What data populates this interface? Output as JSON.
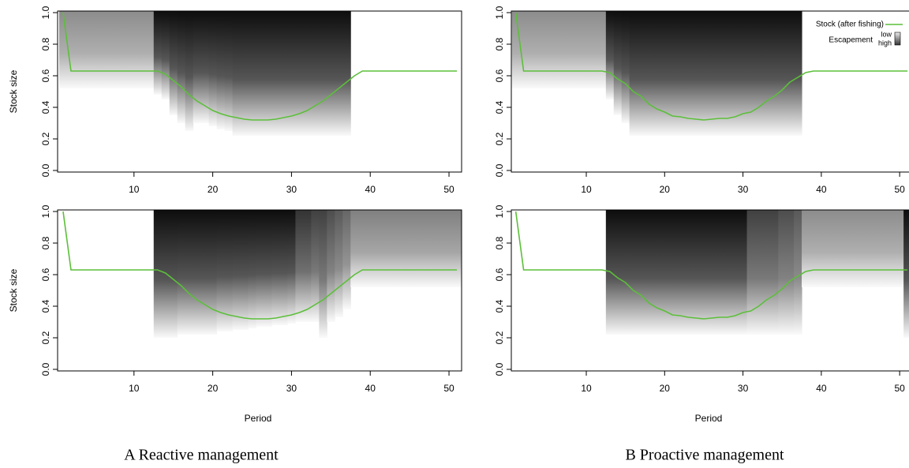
{
  "captions": [
    "A Reactive management",
    "B Proactive management"
  ],
  "chart_data": [
    {
      "type": "line",
      "ylabel": "Stock size",
      "x": [
        1,
        2,
        3,
        4,
        5,
        6,
        7,
        8,
        9,
        10,
        11,
        12,
        13,
        14,
        15,
        16,
        17,
        18,
        19,
        20,
        21,
        22,
        23,
        24,
        25,
        26,
        27,
        28,
        29,
        30,
        31,
        32,
        33,
        34,
        35,
        36,
        37,
        38,
        39,
        40,
        41,
        42,
        43,
        44,
        45,
        46,
        47,
        48,
        49,
        50,
        51
      ],
      "series": [
        {
          "color": "#5cbf3a",
          "values": [
            1.0,
            0.63,
            0.63,
            0.63,
            0.63,
            0.63,
            0.63,
            0.63,
            0.63,
            0.63,
            0.63,
            0.63,
            0.63,
            0.61,
            0.57,
            0.53,
            0.48,
            0.44,
            0.41,
            0.38,
            0.36,
            0.345,
            0.335,
            0.325,
            0.32,
            0.32,
            0.32,
            0.325,
            0.335,
            0.345,
            0.36,
            0.38,
            0.41,
            0.44,
            0.48,
            0.52,
            0.56,
            0.6,
            0.63,
            0.63,
            0.63,
            0.63,
            0.63,
            0.63,
            0.63,
            0.63,
            0.63,
            0.63,
            0.63,
            0.63,
            0.63
          ]
        }
      ],
      "shade_low": [
        0.52,
        0.52,
        0.52,
        0.52,
        0.52,
        0.52,
        0.52,
        0.52,
        0.52,
        0.52,
        0.52,
        0.52,
        0.48,
        0.45,
        0.35,
        0.3,
        0.25,
        0.3,
        0.3,
        0.28,
        0.26,
        0.25,
        0.22,
        0.22,
        0.22,
        0.22,
        0.22,
        0.22,
        0.22,
        0.22,
        0.22,
        0.22,
        0.22,
        0.22,
        0.22,
        0.22,
        0.22,
        null,
        null,
        null,
        null,
        null,
        null,
        null,
        null,
        null,
        null,
        null,
        null,
        null,
        null
      ],
      "shade_dark": [
        0.45,
        0.45,
        0.45,
        0.45,
        0.45,
        0.45,
        0.45,
        0.45,
        0.45,
        0.45,
        0.45,
        0.45,
        0.95,
        0.95,
        0.95,
        0.95,
        0.95,
        0.95,
        0.95,
        0.95,
        0.95,
        0.95,
        0.95,
        0.95,
        0.95,
        0.95,
        0.95,
        0.95,
        0.95,
        0.95,
        0.95,
        0.95,
        0.95,
        0.95,
        0.95,
        0.95,
        0.95,
        null,
        null,
        null,
        null,
        null,
        null,
        null,
        null,
        null,
        null,
        null,
        null,
        null,
        null
      ],
      "xlim": [
        0.3,
        51.6
      ],
      "ylim": [
        -0.01,
        1.01
      ],
      "xticks": [
        10,
        20,
        30,
        40,
        50
      ],
      "yticks": [
        {
          "value": 0,
          "label": "0.0"
        },
        {
          "value": 0.2,
          "label": "0.2"
        },
        {
          "value": 0.4,
          "label": "0.4"
        },
        {
          "value": 0.6,
          "label": "0.6"
        },
        {
          "value": 0.8,
          "label": "0.8"
        },
        {
          "value": 1,
          "label": "1.0"
        }
      ]
    },
    {
      "type": "line",
      "x": [
        1,
        2,
        3,
        4,
        5,
        6,
        7,
        8,
        9,
        10,
        11,
        12,
        13,
        14,
        15,
        16,
        17,
        18,
        19,
        20,
        21,
        22,
        23,
        24,
        25,
        26,
        27,
        28,
        29,
        30,
        31,
        32,
        33,
        34,
        35,
        36,
        37,
        38,
        39,
        40,
        41,
        42,
        43,
        44,
        45,
        46,
        47,
        48,
        49,
        50,
        51
      ],
      "series": [
        {
          "name": "Stock (after fishing)",
          "color": "#5cbf3a",
          "values": [
            1.0,
            0.63,
            0.63,
            0.63,
            0.63,
            0.63,
            0.63,
            0.63,
            0.63,
            0.63,
            0.63,
            0.63,
            0.62,
            0.58,
            0.55,
            0.5,
            0.47,
            0.42,
            0.39,
            0.37,
            0.345,
            0.34,
            0.33,
            0.325,
            0.32,
            0.325,
            0.33,
            0.33,
            0.34,
            0.36,
            0.37,
            0.4,
            0.44,
            0.47,
            0.51,
            0.56,
            0.59,
            0.62,
            0.63,
            0.63,
            0.63,
            0.63,
            0.63,
            0.63,
            0.63,
            0.63,
            0.63,
            0.63,
            0.63,
            0.63,
            0.63
          ]
        }
      ],
      "legend": {
        "position": "top-right",
        "escapement_title": "Escapement",
        "low": "low",
        "high": "high"
      },
      "shade_low": [
        0.52,
        0.52,
        0.52,
        0.52,
        0.52,
        0.52,
        0.52,
        0.52,
        0.52,
        0.52,
        0.52,
        0.52,
        0.45,
        0.35,
        0.3,
        0.22,
        0.22,
        0.22,
        0.22,
        0.22,
        0.22,
        0.22,
        0.22,
        0.22,
        0.22,
        0.22,
        0.22,
        0.22,
        0.22,
        0.22,
        0.22,
        0.22,
        0.22,
        0.22,
        0.22,
        0.22,
        0.22,
        null,
        null,
        null,
        null,
        null,
        null,
        null,
        null,
        null,
        null,
        null,
        null,
        null,
        null
      ],
      "shade_dark": [
        0.45,
        0.45,
        0.45,
        0.45,
        0.45,
        0.45,
        0.45,
        0.45,
        0.45,
        0.45,
        0.45,
        0.45,
        0.95,
        0.95,
        0.95,
        0.95,
        0.95,
        0.95,
        0.95,
        0.95,
        0.95,
        0.95,
        0.95,
        0.95,
        0.95,
        0.95,
        0.95,
        0.95,
        0.95,
        0.95,
        0.95,
        0.95,
        0.95,
        0.95,
        0.95,
        0.95,
        0.95,
        null,
        null,
        null,
        null,
        null,
        null,
        null,
        null,
        null,
        null,
        null,
        null,
        null,
        null
      ],
      "xlim": [
        0.43,
        52.2
      ],
      "ylim": [
        -0.01,
        1.01
      ],
      "xticks": [
        10,
        20,
        30,
        40,
        50
      ],
      "yticks": [
        {
          "value": 0,
          "label": "0.0"
        },
        {
          "value": 0.2,
          "label": "0.2"
        },
        {
          "value": 0.4,
          "label": "0.4"
        },
        {
          "value": 0.6,
          "label": "0.6"
        },
        {
          "value": 0.8,
          "label": "0.8"
        },
        {
          "value": 1,
          "label": "1.0"
        }
      ]
    },
    {
      "type": "line",
      "ylabel": "Stock size",
      "xlabel": "Period",
      "x": [
        1,
        2,
        3,
        4,
        5,
        6,
        7,
        8,
        9,
        10,
        11,
        12,
        13,
        14,
        15,
        16,
        17,
        18,
        19,
        20,
        21,
        22,
        23,
        24,
        25,
        26,
        27,
        28,
        29,
        30,
        31,
        32,
        33,
        34,
        35,
        36,
        37,
        38,
        39,
        40,
        41,
        42,
        43,
        44,
        45,
        46,
        47,
        48,
        49,
        50,
        51
      ],
      "series": [
        {
          "color": "#5cbf3a",
          "values": [
            1.0,
            0.63,
            0.63,
            0.63,
            0.63,
            0.63,
            0.63,
            0.63,
            0.63,
            0.63,
            0.63,
            0.63,
            0.63,
            0.61,
            0.57,
            0.53,
            0.48,
            0.44,
            0.41,
            0.38,
            0.36,
            0.345,
            0.335,
            0.325,
            0.32,
            0.32,
            0.32,
            0.325,
            0.335,
            0.345,
            0.36,
            0.38,
            0.41,
            0.44,
            0.48,
            0.52,
            0.56,
            0.6,
            0.63,
            0.63,
            0.63,
            0.63,
            0.63,
            0.63,
            0.63,
            0.63,
            0.63,
            0.63,
            0.63,
            0.63,
            0.63
          ]
        }
      ],
      "shade_low": [
        null,
        null,
        null,
        null,
        null,
        null,
        null,
        null,
        null,
        null,
        null,
        null,
        0.2,
        0.2,
        0.2,
        0.22,
        0.22,
        0.22,
        0.22,
        0.22,
        0.24,
        0.24,
        0.25,
        0.25,
        0.26,
        0.27,
        0.27,
        0.28,
        0.28,
        0.29,
        0.3,
        0.3,
        0.3,
        0.2,
        0.3,
        0.33,
        0.38,
        0.52,
        0.52,
        0.52,
        0.52,
        0.52,
        0.52,
        0.52,
        0.52,
        0.52,
        0.52,
        0.52,
        0.52,
        0.52,
        0.52
      ],
      "shade_dark": [
        null,
        null,
        null,
        null,
        null,
        null,
        null,
        null,
        null,
        null,
        null,
        null,
        0.95,
        0.95,
        0.95,
        0.95,
        0.95,
        0.95,
        0.95,
        0.95,
        0.95,
        0.95,
        0.95,
        0.95,
        0.95,
        0.95,
        0.95,
        0.95,
        0.95,
        0.95,
        0.8,
        0.8,
        0.75,
        0.75,
        0.7,
        0.65,
        0.6,
        0.5,
        0.5,
        0.5,
        0.5,
        0.5,
        0.5,
        0.5,
        0.5,
        0.5,
        0.5,
        0.5,
        0.5,
        0.5,
        0.5
      ],
      "xlim": [
        0.3,
        51.6
      ],
      "ylim": [
        -0.01,
        1.01
      ],
      "xticks": [
        10,
        20,
        30,
        40,
        50
      ],
      "yticks": [
        {
          "value": 0,
          "label": "0.0"
        },
        {
          "value": 0.2,
          "label": "0.2"
        },
        {
          "value": 0.4,
          "label": "0.4"
        },
        {
          "value": 0.6,
          "label": "0.6"
        },
        {
          "value": 0.8,
          "label": "0.8"
        },
        {
          "value": 1,
          "label": "1.0"
        }
      ]
    },
    {
      "type": "line",
      "xlabel": "Period",
      "x": [
        1,
        2,
        3,
        4,
        5,
        6,
        7,
        8,
        9,
        10,
        11,
        12,
        13,
        14,
        15,
        16,
        17,
        18,
        19,
        20,
        21,
        22,
        23,
        24,
        25,
        26,
        27,
        28,
        29,
        30,
        31,
        32,
        33,
        34,
        35,
        36,
        37,
        38,
        39,
        40,
        41,
        42,
        43,
        44,
        45,
        46,
        47,
        48,
        49,
        50,
        51
      ],
      "series": [
        {
          "color": "#5cbf3a",
          "values": [
            1.0,
            0.63,
            0.63,
            0.63,
            0.63,
            0.63,
            0.63,
            0.63,
            0.63,
            0.63,
            0.63,
            0.63,
            0.62,
            0.58,
            0.55,
            0.5,
            0.47,
            0.42,
            0.39,
            0.37,
            0.345,
            0.34,
            0.33,
            0.325,
            0.32,
            0.325,
            0.33,
            0.33,
            0.34,
            0.36,
            0.37,
            0.4,
            0.44,
            0.47,
            0.51,
            0.56,
            0.59,
            0.62,
            0.63,
            0.63,
            0.63,
            0.63,
            0.63,
            0.63,
            0.63,
            0.63,
            0.63,
            0.63,
            0.63,
            0.63,
            0.63
          ]
        }
      ],
      "shade_low": [
        null,
        null,
        null,
        null,
        null,
        null,
        null,
        null,
        null,
        null,
        null,
        null,
        0.22,
        0.22,
        0.22,
        0.22,
        0.22,
        0.22,
        0.22,
        0.22,
        0.22,
        0.22,
        0.22,
        0.22,
        0.22,
        0.22,
        0.22,
        0.22,
        0.22,
        0.22,
        0.22,
        0.22,
        0.22,
        0.22,
        0.22,
        0.22,
        0.22,
        0.52,
        0.52,
        0.52,
        0.52,
        0.52,
        0.52,
        0.52,
        0.52,
        0.52,
        0.52,
        0.52,
        0.52,
        0.52,
        0.2
      ],
      "shade_dark": [
        null,
        null,
        null,
        null,
        null,
        null,
        null,
        null,
        null,
        null,
        null,
        null,
        0.95,
        0.95,
        0.95,
        0.95,
        0.95,
        0.95,
        0.95,
        0.95,
        0.95,
        0.95,
        0.95,
        0.95,
        0.95,
        0.95,
        0.95,
        0.95,
        0.95,
        0.95,
        0.75,
        0.75,
        0.75,
        0.75,
        0.7,
        0.7,
        0.65,
        0.45,
        0.45,
        0.45,
        0.45,
        0.45,
        0.45,
        0.45,
        0.45,
        0.45,
        0.45,
        0.45,
        0.45,
        0.45,
        0.95
      ],
      "xlim": [
        0.43,
        52.2
      ],
      "ylim": [
        -0.01,
        1.01
      ],
      "xticks": [
        10,
        20,
        30,
        40,
        50
      ],
      "yticks": [
        {
          "value": 0,
          "label": "0.0"
        },
        {
          "value": 0.2,
          "label": "0.2"
        },
        {
          "value": 0.4,
          "label": "0.4"
        },
        {
          "value": 0.6,
          "label": "0.6"
        },
        {
          "value": 0.8,
          "label": "0.8"
        },
        {
          "value": 1,
          "label": "1.0"
        }
      ]
    }
  ]
}
